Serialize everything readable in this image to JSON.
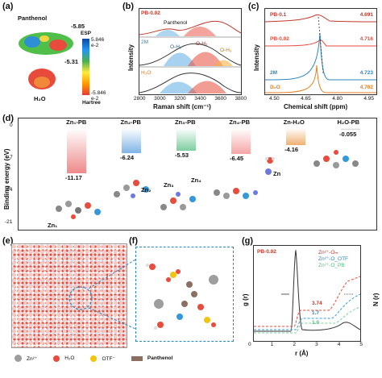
{
  "panel_labels": {
    "a": "(a)",
    "b": "(b)",
    "c": "(c)",
    "d": "(d)",
    "e": "(e)",
    "f": "(f)",
    "g": "(g)"
  },
  "panel_a": {
    "mol1": "Panthenol",
    "mol1_val": "-5.85",
    "mol1_val2": "-5.31",
    "mol2": "H₂O",
    "legend_title": "ESP",
    "legend_max": "5.846 e-2",
    "legend_min": "-5.846 e-2",
    "legend_unit": "Hartree"
  },
  "panel_b": {
    "ylabel": "Intensity",
    "xlabel": "Raman shift (cm⁻¹)",
    "ticks": [
      "2800",
      "3000",
      "3200",
      "3400",
      "3600",
      "3800"
    ],
    "labels": {
      "pb": "PB-0.02",
      "panthenol": "Panthenol",
      "zm": "2M",
      "oh1": "O-H₁",
      "oh2": "O-H₂",
      "oh3": "O-H₃",
      "h2o": "H₂O"
    }
  },
  "panel_c": {
    "ylabel": "Intensity",
    "xlabel": "Chemical shift (ppm)",
    "ticks": [
      "4.50",
      "4.65",
      "4.80",
      "4.95"
    ],
    "series": [
      {
        "name": "PB-0.1",
        "value": "4.691",
        "color": "#c0392b"
      },
      {
        "name": "PB-0.02",
        "value": "4.716",
        "color": "#e74c3c"
      },
      {
        "name": "2M",
        "value": "4.723",
        "color": "#2e86c1"
      },
      {
        "name": "D₂O",
        "value": "4.702",
        "color": "#e67e22"
      }
    ]
  },
  "panel_d": {
    "ylabel": "Binding energy (eV)",
    "yticks": [
      "0",
      "-7",
      "-14",
      "-21"
    ],
    "categories": [
      "Zn₁-PB",
      "Zn₂-PB",
      "Zn₃-PB",
      "Zn₄-PB",
      "Zn-H₂O",
      "H₂O-PB"
    ],
    "values": [
      "-11.17",
      "-6.24",
      "-5.53",
      "-6.45",
      "-4.16",
      "-0.055"
    ],
    "struct_labels": [
      "Zn₁",
      "Zn₂",
      "Zn₃",
      "Zn₄",
      "Zn"
    ]
  },
  "panel_f_legend": {
    "zn": "Zn²⁺",
    "h2o": "H₂O",
    "otf": "OTF⁻",
    "panthenol": "Panthenol"
  },
  "panel_g": {
    "title": "PB-0.02",
    "xlabel": "r (Å)",
    "ylabel_left": "g (r)",
    "ylabel_right": "N (r)",
    "xticks": [
      "0",
      "1",
      "2",
      "3",
      "4",
      "5"
    ],
    "yticks_left": [
      "0",
      "2",
      "4",
      "6"
    ],
    "yticks_right": [
      "0",
      "5",
      "10",
      "15"
    ],
    "legend": [
      "Zn²⁺-Oₘ",
      "Zn²⁺-O_OTF",
      "Zn²⁺-O_PB"
    ],
    "annotations": [
      "3.74",
      "1.7",
      "1.0"
    ]
  },
  "chart_data": [
    {
      "type": "bar",
      "title": "",
      "ylabel": "Binding energy (eV)",
      "categories": [
        "Zn1-PB",
        "Zn2-PB",
        "Zn3-PB",
        "Zn4-PB",
        "Zn-H2O",
        "H2O-PB"
      ],
      "values": [
        -11.17,
        -6.24,
        -5.53,
        -6.45,
        -4.16,
        -0.055
      ],
      "ylim": [
        -21,
        0
      ]
    },
    {
      "type": "line",
      "title": "",
      "xlabel": "Chemical shift (ppm)",
      "ylabel": "Intensity",
      "series": [
        {
          "name": "PB-0.1",
          "peak": 4.691
        },
        {
          "name": "PB-0.02",
          "peak": 4.716
        },
        {
          "name": "2M",
          "peak": 4.723
        },
        {
          "name": "D2O",
          "peak": 4.702
        }
      ],
      "xlim": [
        4.45,
        4.95
      ]
    }
  ]
}
